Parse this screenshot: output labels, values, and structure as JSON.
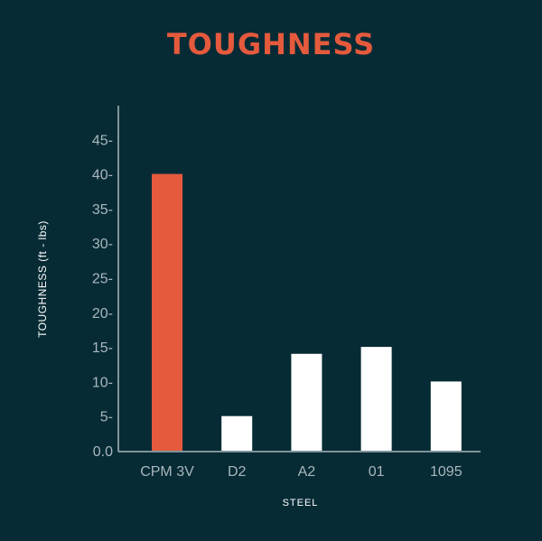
{
  "chart_data": {
    "type": "bar",
    "title": "TOUGHNESS",
    "xlabel": "STEEL",
    "ylabel": "TOUGHNESS (ft - lbs)",
    "categories": [
      "CPM 3V",
      "D2",
      "A2",
      "01",
      "1095"
    ],
    "values": [
      40,
      5,
      14,
      15,
      10
    ],
    "yticks": [
      "0.0",
      "5-",
      "10-",
      "15-",
      "20-",
      "25-",
      "30-",
      "35-",
      "40-",
      "45-"
    ],
    "ylim": [
      0,
      48
    ],
    "grid": false,
    "colors": {
      "highlight": "#e55a3d",
      "bar": "#ffffff",
      "axis": "#a9b7bc",
      "background": "#062b35"
    },
    "highlight_index": 0
  }
}
